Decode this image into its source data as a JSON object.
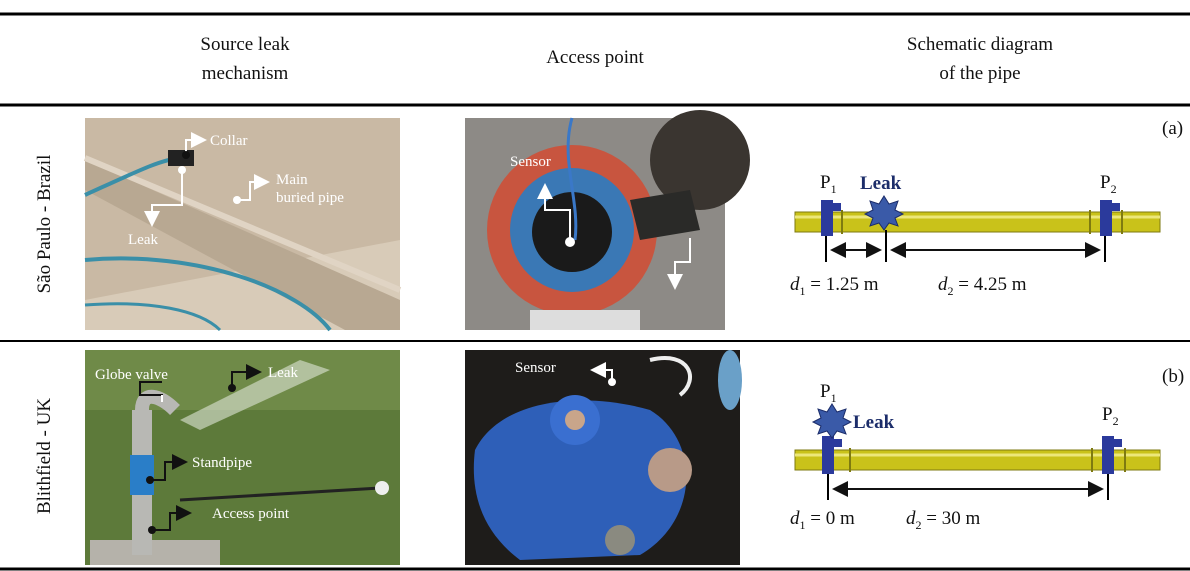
{
  "header": {
    "columns": [
      {
        "lines": [
          "Source leak",
          "mechanism"
        ]
      },
      {
        "lines": [
          "Access point"
        ]
      },
      {
        "lines": [
          "Schematic diagram",
          "of the pipe"
        ]
      }
    ]
  },
  "rows": [
    {
      "location": "São Paulo - Brazil",
      "source_labels": [
        "Collar",
        "Main",
        "buried pipe",
        "Leak"
      ],
      "access_labels": [
        "Sensor"
      ],
      "diagram": {
        "panel": "(a)",
        "p1": {
          "symbol": "P",
          "sub": "1"
        },
        "leak": "Leak",
        "p2": {
          "symbol": "P",
          "sub": "2"
        },
        "d1": {
          "symbol": "d",
          "sub": "1",
          "text": " = 1.25 m"
        },
        "d2": {
          "symbol": "d",
          "sub": "2",
          "text": " = 4.25 m"
        }
      }
    },
    {
      "location": "Blithfield - UK",
      "source_labels": [
        "Globe valve",
        "Leak",
        "Standpipe",
        "Access point"
      ],
      "access_labels": [
        "Sensor"
      ],
      "diagram": {
        "panel": "(b)",
        "p1": {
          "symbol": "P",
          "sub": "1"
        },
        "leak": "Leak",
        "p2": {
          "symbol": "P",
          "sub": "2"
        },
        "d1": {
          "symbol": "d",
          "sub": "1",
          "text": " = 0 m"
        },
        "d2": {
          "symbol": "d",
          "sub": "2",
          "text": " = 30 m"
        }
      }
    }
  ]
}
